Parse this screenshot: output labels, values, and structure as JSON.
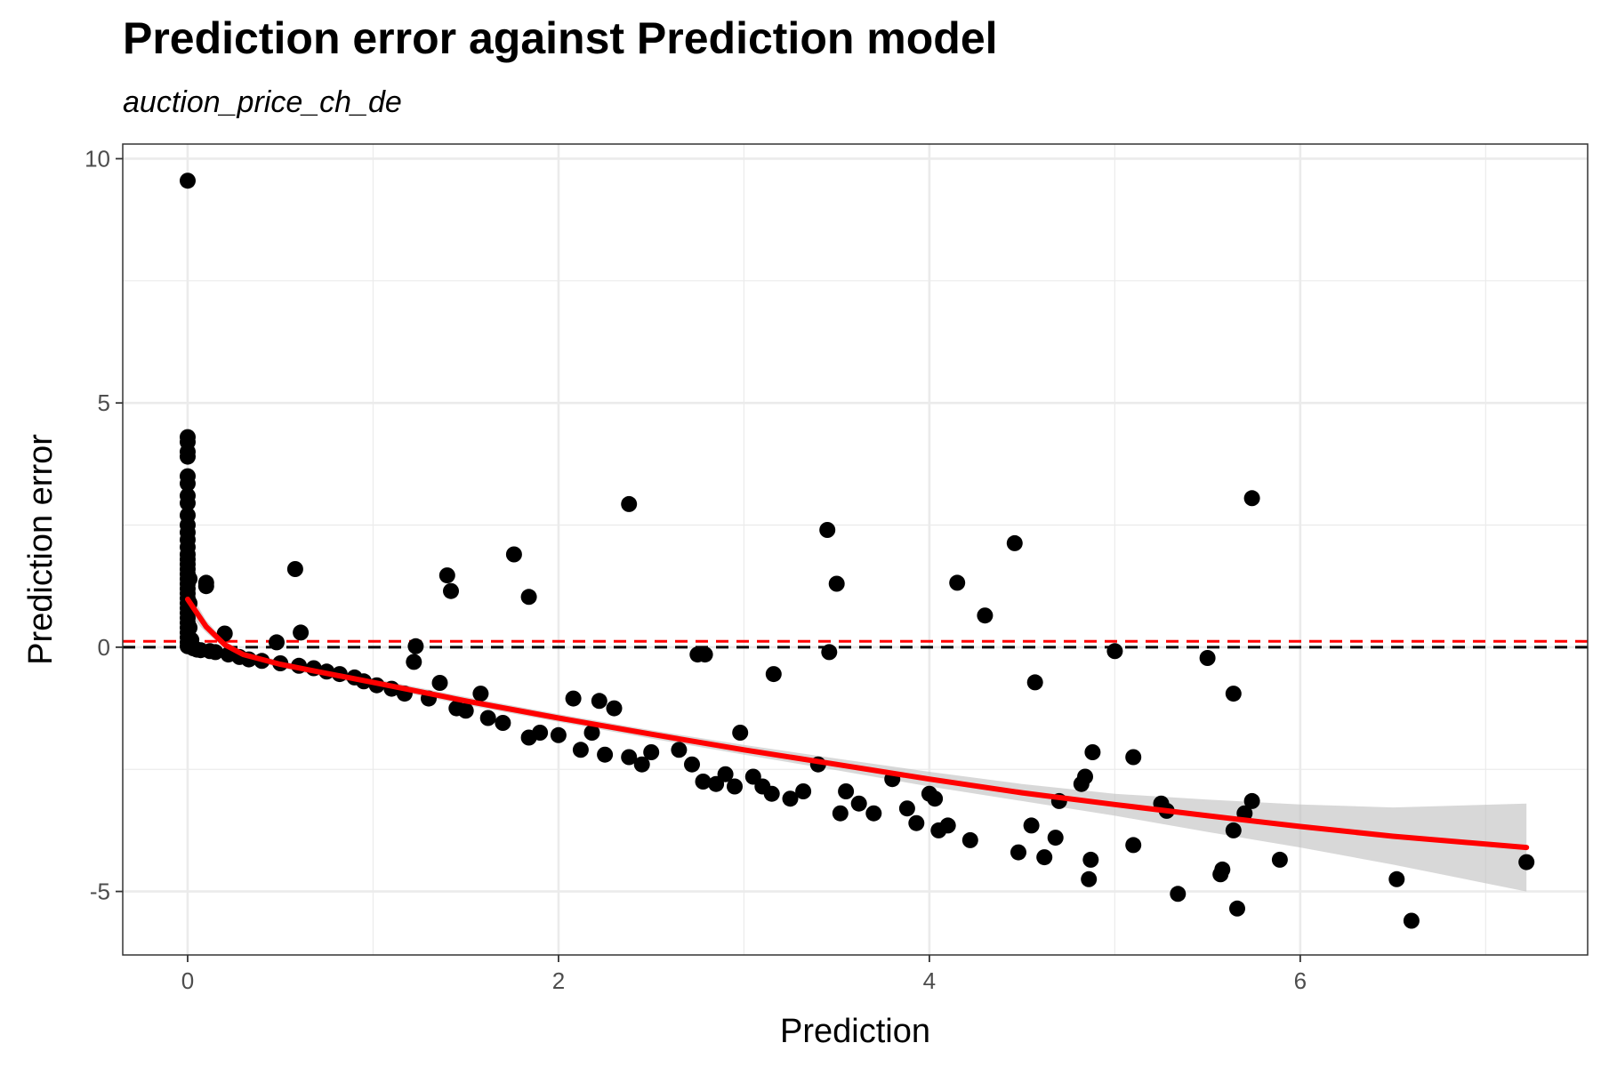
{
  "chart_data": {
    "type": "scatter",
    "title": "Prediction error against Prediction model",
    "subtitle": "auction_price_ch_de",
    "xlabel": "Prediction",
    "ylabel": "Prediction error",
    "xlim": [
      -0.35,
      7.55
    ],
    "ylim": [
      -6.3,
      10.3
    ],
    "x_ticks": [
      0,
      2,
      4,
      6
    ],
    "y_ticks": [
      -5,
      0,
      5,
      10
    ],
    "x_tick_labels": [
      "0",
      "2",
      "4",
      "6"
    ],
    "y_tick_labels": [
      "-5",
      "0",
      "5",
      "10"
    ],
    "grid": true,
    "legend": "none",
    "colors": {
      "points": "#000000",
      "smooth_line": "#ff0000",
      "confidence_band": "#bebebe",
      "zero_line": "#000000",
      "mean_error_line": "#ff0000",
      "grid": "#ebebeb",
      "panel_border": "#333333"
    },
    "reference_lines": [
      {
        "y": 0,
        "style": "dashed",
        "color": "#000000"
      },
      {
        "y": 0.12,
        "style": "dashed",
        "color": "#ff0000"
      }
    ],
    "smooth": {
      "x": [
        0.0,
        0.05,
        0.1,
        0.2,
        0.3,
        0.5,
        0.7,
        1.0,
        1.5,
        2.0,
        2.5,
        3.0,
        3.5,
        4.0,
        4.5,
        5.0,
        5.5,
        6.0,
        6.5,
        7.22
      ],
      "y": [
        0.98,
        0.7,
        0.42,
        0.05,
        -0.15,
        -0.35,
        -0.5,
        -0.72,
        -1.1,
        -1.45,
        -1.78,
        -2.1,
        -2.4,
        -2.7,
        -2.98,
        -3.22,
        -3.45,
        -3.67,
        -3.87,
        -4.1
      ],
      "ci_lower": [
        0.7,
        0.5,
        0.3,
        -0.02,
        -0.22,
        -0.42,
        -0.58,
        -0.8,
        -1.18,
        -1.53,
        -1.87,
        -2.2,
        -2.52,
        -2.85,
        -3.15,
        -3.45,
        -3.78,
        -4.1,
        -4.45,
        -5.0
      ],
      "ci_upper": [
        1.2,
        0.88,
        0.55,
        0.12,
        -0.08,
        -0.28,
        -0.42,
        -0.64,
        -1.02,
        -1.37,
        -1.7,
        -2.0,
        -2.28,
        -2.55,
        -2.8,
        -3.0,
        -3.12,
        -3.22,
        -3.28,
        -3.2
      ]
    },
    "points": [
      [
        0.0,
        9.55
      ],
      [
        0.0,
        4.3
      ],
      [
        0.0,
        4.2
      ],
      [
        0.0,
        4.0
      ],
      [
        0.0,
        3.9
      ],
      [
        0.0,
        3.5
      ],
      [
        0.0,
        3.35
      ],
      [
        0.0,
        3.1
      ],
      [
        0.0,
        2.95
      ],
      [
        0.0,
        2.7
      ],
      [
        0.0,
        2.5
      ],
      [
        0.0,
        2.35
      ],
      [
        0.0,
        2.2
      ],
      [
        0.0,
        2.05
      ],
      [
        0.0,
        1.9
      ],
      [
        0.0,
        1.8
      ],
      [
        0.0,
        1.7
      ],
      [
        0.0,
        1.6
      ],
      [
        0.0,
        1.5
      ],
      [
        0.0,
        1.4
      ],
      [
        0.0,
        1.3
      ],
      [
        0.0,
        1.2
      ],
      [
        0.0,
        1.1
      ],
      [
        0.0,
        1.0
      ],
      [
        0.0,
        0.9
      ],
      [
        0.0,
        0.8
      ],
      [
        0.0,
        0.7
      ],
      [
        0.0,
        0.6
      ],
      [
        0.0,
        0.5
      ],
      [
        0.0,
        0.4
      ],
      [
        0.0,
        0.3
      ],
      [
        0.0,
        0.2
      ],
      [
        0.0,
        0.1
      ],
      [
        0.0,
        0.02
      ],
      [
        0.01,
        1.4
      ],
      [
        0.01,
        0.9
      ],
      [
        0.01,
        0.4
      ],
      [
        0.02,
        0.15
      ],
      [
        0.03,
        -0.02
      ],
      [
        0.05,
        -0.05
      ],
      [
        0.07,
        -0.06
      ],
      [
        0.1,
        1.32
      ],
      [
        0.1,
        1.25
      ],
      [
        0.12,
        -0.08
      ],
      [
        0.15,
        -0.1
      ],
      [
        0.2,
        0.28
      ],
      [
        0.22,
        -0.15
      ],
      [
        0.28,
        -0.2
      ],
      [
        0.33,
        -0.25
      ],
      [
        0.4,
        -0.28
      ],
      [
        0.48,
        0.1
      ],
      [
        0.5,
        -0.33
      ],
      [
        0.58,
        1.6
      ],
      [
        0.6,
        -0.38
      ],
      [
        0.61,
        0.3
      ],
      [
        0.68,
        -0.43
      ],
      [
        0.75,
        -0.5
      ],
      [
        0.82,
        -0.55
      ],
      [
        0.9,
        -0.62
      ],
      [
        0.95,
        -0.7
      ],
      [
        1.02,
        -0.78
      ],
      [
        1.1,
        -0.85
      ],
      [
        1.17,
        -0.95
      ],
      [
        1.22,
        -0.3
      ],
      [
        1.23,
        0.02
      ],
      [
        1.3,
        -1.05
      ],
      [
        1.36,
        -0.73
      ],
      [
        1.4,
        1.47
      ],
      [
        1.42,
        1.15
      ],
      [
        1.45,
        -1.25
      ],
      [
        1.5,
        -1.3
      ],
      [
        1.58,
        -0.95
      ],
      [
        1.62,
        -1.45
      ],
      [
        1.7,
        -1.55
      ],
      [
        1.76,
        1.9
      ],
      [
        1.84,
        1.03
      ],
      [
        1.84,
        -1.85
      ],
      [
        1.9,
        -1.75
      ],
      [
        2.0,
        -1.8
      ],
      [
        2.08,
        -1.05
      ],
      [
        2.12,
        -2.1
      ],
      [
        2.18,
        -1.75
      ],
      [
        2.22,
        -1.1
      ],
      [
        2.25,
        -2.2
      ],
      [
        2.3,
        -1.25
      ],
      [
        2.38,
        -2.25
      ],
      [
        2.38,
        2.93
      ],
      [
        2.45,
        -2.4
      ],
      [
        2.5,
        -2.15
      ],
      [
        2.65,
        -2.1
      ],
      [
        2.72,
        -2.4
      ],
      [
        2.75,
        -0.15
      ],
      [
        2.78,
        -2.75
      ],
      [
        2.79,
        -0.15
      ],
      [
        2.85,
        -2.8
      ],
      [
        2.9,
        -2.6
      ],
      [
        2.95,
        -2.85
      ],
      [
        2.98,
        -1.75
      ],
      [
        3.05,
        -2.65
      ],
      [
        3.1,
        -2.85
      ],
      [
        3.15,
        -3.0
      ],
      [
        3.16,
        -0.55
      ],
      [
        3.25,
        -3.1
      ],
      [
        3.32,
        -2.95
      ],
      [
        3.4,
        -2.4
      ],
      [
        3.45,
        2.4
      ],
      [
        3.46,
        -0.1
      ],
      [
        3.5,
        1.3
      ],
      [
        3.52,
        -3.4
      ],
      [
        3.55,
        -2.95
      ],
      [
        3.62,
        -3.2
      ],
      [
        3.7,
        -3.4
      ],
      [
        3.8,
        -2.7
      ],
      [
        3.88,
        -3.3
      ],
      [
        3.93,
        -3.6
      ],
      [
        4.0,
        -3.0
      ],
      [
        4.03,
        -3.1
      ],
      [
        4.05,
        -3.75
      ],
      [
        4.1,
        -3.65
      ],
      [
        4.15,
        1.32
      ],
      [
        4.22,
        -3.95
      ],
      [
        4.3,
        0.65
      ],
      [
        4.46,
        2.13
      ],
      [
        4.48,
        -4.2
      ],
      [
        4.55,
        -3.65
      ],
      [
        4.57,
        -0.72
      ],
      [
        4.62,
        -4.3
      ],
      [
        4.68,
        -3.9
      ],
      [
        4.7,
        -3.15
      ],
      [
        4.82,
        -2.8
      ],
      [
        4.84,
        -2.65
      ],
      [
        4.86,
        -4.75
      ],
      [
        4.87,
        -4.35
      ],
      [
        4.88,
        -2.15
      ],
      [
        5.0,
        -0.08
      ],
      [
        5.1,
        -2.25
      ],
      [
        5.1,
        -4.05
      ],
      [
        5.25,
        -3.2
      ],
      [
        5.28,
        -3.35
      ],
      [
        5.34,
        -5.05
      ],
      [
        5.5,
        -0.22
      ],
      [
        5.57,
        -4.65
      ],
      [
        5.58,
        -4.55
      ],
      [
        5.64,
        -3.75
      ],
      [
        5.64,
        -0.95
      ],
      [
        5.66,
        -5.35
      ],
      [
        5.7,
        -3.4
      ],
      [
        5.74,
        -3.15
      ],
      [
        5.74,
        3.05
      ],
      [
        5.89,
        -4.35
      ],
      [
        6.52,
        -4.75
      ],
      [
        6.6,
        -5.6
      ],
      [
        7.22,
        -4.4
      ]
    ]
  }
}
